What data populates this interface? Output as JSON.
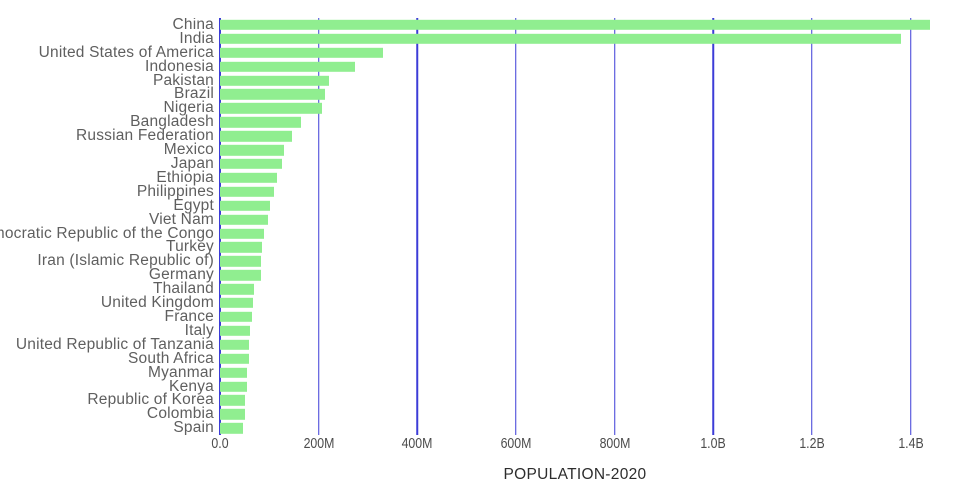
{
  "title": "POPULATION-2020",
  "colors": {
    "bar": "#90ee90",
    "gridline": "#3c3cd7",
    "axis_line": "#3c3cd7",
    "country_label": "#5f5f5f",
    "tick_label": "#4c4c4c",
    "title_text": "#2d2d2d",
    "background": "#ffffff"
  },
  "chart_data": {
    "type": "bar",
    "orientation": "horizontal",
    "title": "POPULATION-2020",
    "xlabel": "POPULATION-2020",
    "ylabel": "",
    "unit": "millions of people",
    "grid": true,
    "legend": false,
    "xlim": [
      0,
      1439.32
    ],
    "x_ticks": [
      {
        "label": "0.0",
        "value": 0
      },
      {
        "label": "200M",
        "value": 200
      },
      {
        "label": "400M",
        "value": 400
      },
      {
        "label": "600M",
        "value": 600
      },
      {
        "label": "800M",
        "value": 800
      },
      {
        "label": "1.0B",
        "value": 1000
      },
      {
        "label": "1.2B",
        "value": 1200
      },
      {
        "label": "1.4B",
        "value": 1400
      }
    ],
    "categories": [
      "China",
      "India",
      "United States of America",
      "Indonesia",
      "Pakistan",
      "Brazil",
      "Nigeria",
      "Bangladesh",
      "Russian Federation",
      "Mexico",
      "Japan",
      "Ethiopia",
      "Philippines",
      "Egypt",
      "Viet Nam",
      "Democratic Republic of the Congo",
      "Turkey",
      "Iran (Islamic Republic of)",
      "Germany",
      "Thailand",
      "United Kingdom",
      "France",
      "Italy",
      "United Republic of Tanzania",
      "South Africa",
      "Myanmar",
      "Kenya",
      "Republic of Korea",
      "Colombia",
      "Spain"
    ],
    "values": [
      1439.32,
      1380.0,
      331.0,
      273.5,
      220.9,
      212.6,
      206.1,
      164.7,
      145.9,
      128.9,
      126.5,
      115.0,
      109.6,
      102.3,
      97.3,
      89.6,
      84.3,
      84.0,
      83.8,
      69.8,
      67.9,
      65.3,
      60.5,
      59.7,
      59.3,
      54.4,
      53.8,
      51.3,
      50.9,
      46.75
    ]
  }
}
